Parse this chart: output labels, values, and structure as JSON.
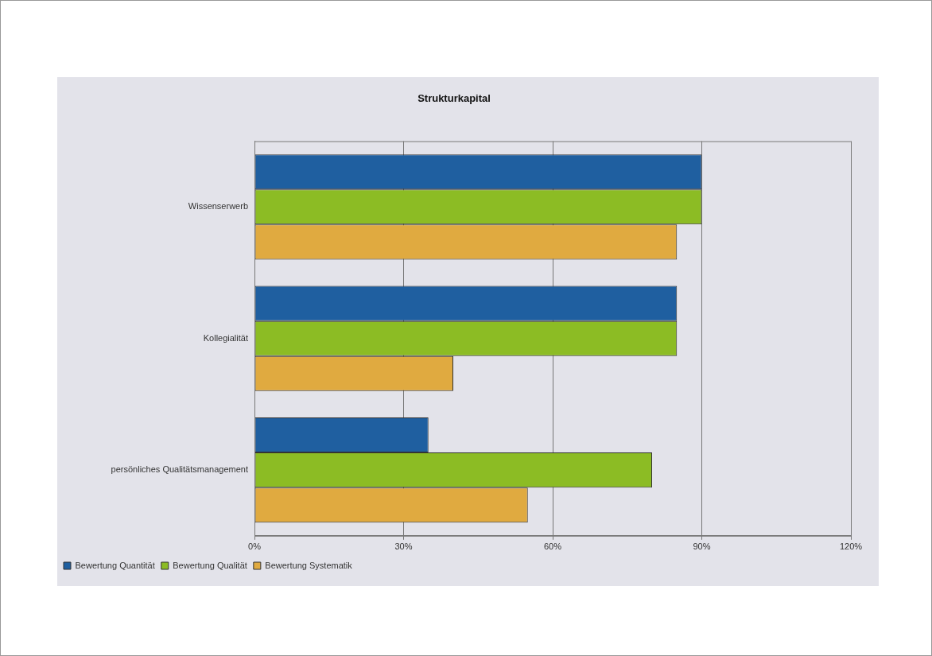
{
  "chart_data": {
    "type": "bar",
    "orientation": "horizontal",
    "title": "Strukturkapital",
    "categories": [
      "Wissenserwerb",
      "Kollegialität",
      "persönliches Qualitätsmanagement"
    ],
    "series": [
      {
        "name": "Bewertung Quantität",
        "color": "#1f5fa0",
        "values": [
          90,
          85,
          35
        ]
      },
      {
        "name": "Bewertung Qualität",
        "color": "#8cbc24",
        "values": [
          90,
          85,
          80
        ]
      },
      {
        "name": "Bewertung Systematik",
        "color": "#e0aa40",
        "values": [
          85,
          40,
          55
        ]
      }
    ],
    "xlim": [
      0,
      120
    ],
    "xticks": [
      {
        "value": 0,
        "label": "0%"
      },
      {
        "value": 30,
        "label": "30%"
      },
      {
        "value": 60,
        "label": "60%"
      },
      {
        "value": 90,
        "label": "90%"
      },
      {
        "value": 120,
        "label": "120%"
      }
    ],
    "grid": "x",
    "legend": "bottom left"
  }
}
